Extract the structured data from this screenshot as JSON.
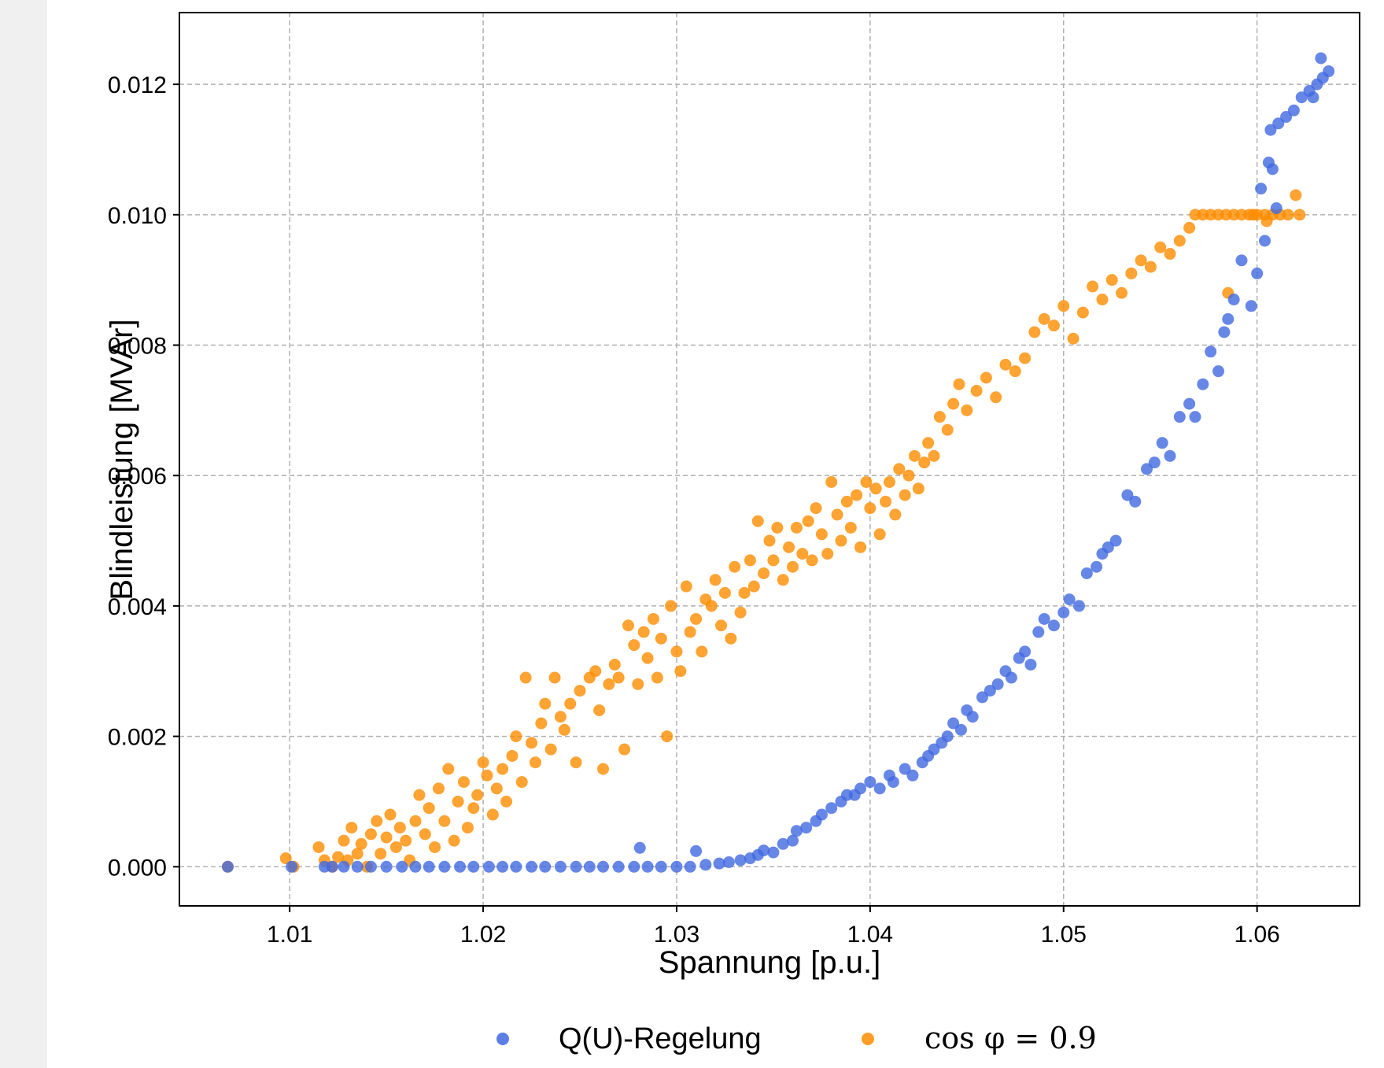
{
  "chart_data": {
    "type": "scatter",
    "title": "",
    "xlabel": "Spannung [p.u.]",
    "ylabel": "Blindleistung [MVAr]",
    "xlim": [
      1.0043,
      1.0653
    ],
    "ylim": [
      -0.0006,
      0.0131
    ],
    "xticks": [
      1.01,
      1.02,
      1.03,
      1.04,
      1.05,
      1.06
    ],
    "xtick_labels": [
      "1.01",
      "1.02",
      "1.03",
      "1.04",
      "1.05",
      "1.06"
    ],
    "yticks": [
      0,
      0.002,
      0.004,
      0.006,
      0.008,
      0.01,
      0.012
    ],
    "ytick_labels": [
      "0.000",
      "0.002",
      "0.004",
      "0.006",
      "0.008",
      "0.010",
      "0.012"
    ],
    "grid": true,
    "legend_position": "bottom-center",
    "series": [
      {
        "name": "Q(U)-Regelung",
        "color": "#4169e1",
        "points": [
          [
            1.0068,
            0.0
          ],
          [
            1.0101,
            0.0
          ],
          [
            1.0118,
            0.0
          ],
          [
            1.0122,
            0.0
          ],
          [
            1.0128,
            0.0
          ],
          [
            1.0135,
            0.0
          ],
          [
            1.0142,
            0.0
          ],
          [
            1.015,
            0.0
          ],
          [
            1.0158,
            0.0
          ],
          [
            1.0165,
            0.0
          ],
          [
            1.0172,
            0.0
          ],
          [
            1.018,
            0.0
          ],
          [
            1.0188,
            0.0
          ],
          [
            1.0195,
            0.0
          ],
          [
            1.0203,
            0.0
          ],
          [
            1.021,
            0.0
          ],
          [
            1.0217,
            0.0
          ],
          [
            1.0225,
            0.0
          ],
          [
            1.0232,
            0.0
          ],
          [
            1.024,
            0.0
          ],
          [
            1.0248,
            0.0
          ],
          [
            1.0255,
            0.0
          ],
          [
            1.0262,
            0.0
          ],
          [
            1.027,
            0.0
          ],
          [
            1.0278,
            0.0
          ],
          [
            1.0285,
            0.0
          ],
          [
            1.0292,
            0.0
          ],
          [
            1.03,
            0.0
          ],
          [
            1.0307,
            0.0
          ],
          [
            1.0315,
            3e-05
          ],
          [
            1.0322,
            5e-05
          ],
          [
            1.0281,
            0.00029
          ],
          [
            1.031,
            0.00024
          ],
          [
            1.0327,
            7e-05
          ],
          [
            1.0333,
            0.0001
          ],
          [
            1.0338,
            0.00013
          ],
          [
            1.0342,
            0.00018
          ],
          [
            1.0345,
            0.00025
          ],
          [
            1.035,
            0.00022
          ],
          [
            1.0355,
            0.00035
          ],
          [
            1.036,
            0.0004
          ],
          [
            1.0362,
            0.00055
          ],
          [
            1.0367,
            0.0006
          ],
          [
            1.0372,
            0.0007
          ],
          [
            1.0375,
            0.0008
          ],
          [
            1.038,
            0.0009
          ],
          [
            1.0385,
            0.001
          ],
          [
            1.0388,
            0.0011
          ],
          [
            1.0392,
            0.0011
          ],
          [
            1.0395,
            0.0012
          ],
          [
            1.04,
            0.0013
          ],
          [
            1.0405,
            0.0012
          ],
          [
            1.041,
            0.0014
          ],
          [
            1.0412,
            0.0013
          ],
          [
            1.0418,
            0.0015
          ],
          [
            1.0422,
            0.0014
          ],
          [
            1.0427,
            0.0016
          ],
          [
            1.043,
            0.0017
          ],
          [
            1.0433,
            0.0018
          ],
          [
            1.0437,
            0.0019
          ],
          [
            1.044,
            0.002
          ],
          [
            1.0443,
            0.0022
          ],
          [
            1.0447,
            0.0021
          ],
          [
            1.045,
            0.0024
          ],
          [
            1.0453,
            0.0023
          ],
          [
            1.0458,
            0.0026
          ],
          [
            1.0462,
            0.0027
          ],
          [
            1.0466,
            0.0028
          ],
          [
            1.047,
            0.003
          ],
          [
            1.0473,
            0.0029
          ],
          [
            1.0477,
            0.0032
          ],
          [
            1.048,
            0.0033
          ],
          [
            1.0483,
            0.0031
          ],
          [
            1.0487,
            0.0036
          ],
          [
            1.049,
            0.0038
          ],
          [
            1.0495,
            0.0037
          ],
          [
            1.05,
            0.0039
          ],
          [
            1.0503,
            0.0041
          ],
          [
            1.0508,
            0.004
          ],
          [
            1.0512,
            0.0045
          ],
          [
            1.0517,
            0.0046
          ],
          [
            1.052,
            0.0048
          ],
          [
            1.0523,
            0.0049
          ],
          [
            1.0527,
            0.005
          ],
          [
            1.0533,
            0.0057
          ],
          [
            1.0537,
            0.0056
          ],
          [
            1.0543,
            0.0061
          ],
          [
            1.0547,
            0.0062
          ],
          [
            1.0551,
            0.0065
          ],
          [
            1.0555,
            0.0063
          ],
          [
            1.056,
            0.0069
          ],
          [
            1.0565,
            0.0071
          ],
          [
            1.0568,
            0.0069
          ],
          [
            1.0572,
            0.0074
          ],
          [
            1.0576,
            0.0079
          ],
          [
            1.058,
            0.0076
          ],
          [
            1.0583,
            0.0082
          ],
          [
            1.0585,
            0.0084
          ],
          [
            1.0588,
            0.0087
          ],
          [
            1.0592,
            0.0093
          ],
          [
            1.0597,
            0.0086
          ],
          [
            1.06,
            0.0091
          ],
          [
            1.0602,
            0.0104
          ],
          [
            1.0604,
            0.0096
          ],
          [
            1.0606,
            0.0108
          ],
          [
            1.0608,
            0.0107
          ],
          [
            1.061,
            0.0101
          ],
          [
            1.0607,
            0.0113
          ],
          [
            1.0611,
            0.0114
          ],
          [
            1.0615,
            0.0115
          ],
          [
            1.0619,
            0.0116
          ],
          [
            1.0623,
            0.0118
          ],
          [
            1.0627,
            0.0119
          ],
          [
            1.0631,
            0.012
          ],
          [
            1.0634,
            0.0121
          ],
          [
            1.0637,
            0.0122
          ],
          [
            1.0633,
            0.0124
          ],
          [
            1.0629,
            0.0118
          ]
        ]
      },
      {
        "name": "cos φ = 0.9",
        "color": "#ff8c00",
        "points": [
          [
            1.0068,
            0.0
          ],
          [
            1.0098,
            0.00013
          ],
          [
            1.0102,
            0.0
          ],
          [
            1.0115,
            0.0003
          ],
          [
            1.0118,
            0.0001
          ],
          [
            1.0122,
            0.0
          ],
          [
            1.0125,
            0.00015
          ],
          [
            1.0128,
            0.0004
          ],
          [
            1.013,
            0.0001
          ],
          [
            1.0132,
            0.0006
          ],
          [
            1.0135,
            0.0002
          ],
          [
            1.0137,
            0.00035
          ],
          [
            1.014,
            0.0
          ],
          [
            1.0142,
            0.0005
          ],
          [
            1.0145,
            0.0007
          ],
          [
            1.0147,
            0.0002
          ],
          [
            1.015,
            0.00045
          ],
          [
            1.0152,
            0.0008
          ],
          [
            1.0155,
            0.0003
          ],
          [
            1.0157,
            0.0006
          ],
          [
            1.016,
            0.0004
          ],
          [
            1.0162,
            0.0001
          ],
          [
            1.0165,
            0.0007
          ],
          [
            1.0167,
            0.0011
          ],
          [
            1.017,
            0.0005
          ],
          [
            1.0172,
            0.0009
          ],
          [
            1.0175,
            0.0003
          ],
          [
            1.0177,
            0.0012
          ],
          [
            1.018,
            0.0007
          ],
          [
            1.0182,
            0.0015
          ],
          [
            1.0185,
            0.0004
          ],
          [
            1.0187,
            0.001
          ],
          [
            1.019,
            0.0013
          ],
          [
            1.0192,
            0.0006
          ],
          [
            1.0195,
            0.0009
          ],
          [
            1.0197,
            0.0011
          ],
          [
            1.02,
            0.0016
          ],
          [
            1.0202,
            0.0014
          ],
          [
            1.0205,
            0.0008
          ],
          [
            1.0207,
            0.0012
          ],
          [
            1.021,
            0.0015
          ],
          [
            1.0212,
            0.001
          ],
          [
            1.0215,
            0.0017
          ],
          [
            1.0217,
            0.002
          ],
          [
            1.022,
            0.0013
          ],
          [
            1.0222,
            0.0029
          ],
          [
            1.0225,
            0.0019
          ],
          [
            1.0227,
            0.0016
          ],
          [
            1.023,
            0.0022
          ],
          [
            1.0232,
            0.0025
          ],
          [
            1.0235,
            0.0018
          ],
          [
            1.0237,
            0.0029
          ],
          [
            1.024,
            0.0023
          ],
          [
            1.0242,
            0.0021
          ],
          [
            1.0245,
            0.0025
          ],
          [
            1.0248,
            0.0016
          ],
          [
            1.025,
            0.0027
          ],
          [
            1.0255,
            0.0029
          ],
          [
            1.0258,
            0.003
          ],
          [
            1.026,
            0.0024
          ],
          [
            1.0262,
            0.0015
          ],
          [
            1.0265,
            0.0028
          ],
          [
            1.0268,
            0.0031
          ],
          [
            1.027,
            0.0029
          ],
          [
            1.0273,
            0.0018
          ],
          [
            1.0275,
            0.0037
          ],
          [
            1.0278,
            0.0034
          ],
          [
            1.028,
            0.0028
          ],
          [
            1.0283,
            0.0036
          ],
          [
            1.0285,
            0.0032
          ],
          [
            1.0288,
            0.0038
          ],
          [
            1.029,
            0.0029
          ],
          [
            1.0292,
            0.0035
          ],
          [
            1.0295,
            0.002
          ],
          [
            1.0297,
            0.004
          ],
          [
            1.03,
            0.0033
          ],
          [
            1.0302,
            0.003
          ],
          [
            1.0305,
            0.0043
          ],
          [
            1.0307,
            0.0036
          ],
          [
            1.031,
            0.0038
          ],
          [
            1.0313,
            0.0033
          ],
          [
            1.0315,
            0.0041
          ],
          [
            1.0318,
            0.004
          ],
          [
            1.032,
            0.0044
          ],
          [
            1.0323,
            0.0037
          ],
          [
            1.0325,
            0.0042
          ],
          [
            1.0328,
            0.0035
          ],
          [
            1.033,
            0.0046
          ],
          [
            1.0333,
            0.0039
          ],
          [
            1.0335,
            0.0042
          ],
          [
            1.0338,
            0.0047
          ],
          [
            1.034,
            0.0043
          ],
          [
            1.0342,
            0.0053
          ],
          [
            1.0345,
            0.0045
          ],
          [
            1.0348,
            0.005
          ],
          [
            1.035,
            0.0047
          ],
          [
            1.0352,
            0.0052
          ],
          [
            1.0355,
            0.0044
          ],
          [
            1.0358,
            0.0049
          ],
          [
            1.036,
            0.0046
          ],
          [
            1.0362,
            0.0052
          ],
          [
            1.0365,
            0.0048
          ],
          [
            1.0368,
            0.0053
          ],
          [
            1.037,
            0.0047
          ],
          [
            1.0372,
            0.0055
          ],
          [
            1.0375,
            0.0051
          ],
          [
            1.0378,
            0.0048
          ],
          [
            1.038,
            0.0059
          ],
          [
            1.0383,
            0.0054
          ],
          [
            1.0385,
            0.005
          ],
          [
            1.0388,
            0.0056
          ],
          [
            1.039,
            0.0052
          ],
          [
            1.0393,
            0.0057
          ],
          [
            1.0395,
            0.0049
          ],
          [
            1.0398,
            0.0059
          ],
          [
            1.04,
            0.0055
          ],
          [
            1.0403,
            0.0058
          ],
          [
            1.0405,
            0.0051
          ],
          [
            1.0408,
            0.0056
          ],
          [
            1.041,
            0.0059
          ],
          [
            1.0413,
            0.0054
          ],
          [
            1.0415,
            0.0061
          ],
          [
            1.0418,
            0.0057
          ],
          [
            1.042,
            0.006
          ],
          [
            1.0423,
            0.0063
          ],
          [
            1.0425,
            0.0058
          ],
          [
            1.0428,
            0.0062
          ],
          [
            1.043,
            0.0065
          ],
          [
            1.0433,
            0.0063
          ],
          [
            1.0436,
            0.0069
          ],
          [
            1.044,
            0.0067
          ],
          [
            1.0443,
            0.0071
          ],
          [
            1.0446,
            0.0074
          ],
          [
            1.045,
            0.007
          ],
          [
            1.0455,
            0.0073
          ],
          [
            1.046,
            0.0075
          ],
          [
            1.0465,
            0.0072
          ],
          [
            1.047,
            0.0077
          ],
          [
            1.0475,
            0.0076
          ],
          [
            1.048,
            0.0078
          ],
          [
            1.0485,
            0.0082
          ],
          [
            1.049,
            0.0084
          ],
          [
            1.0495,
            0.0083
          ],
          [
            1.05,
            0.0086
          ],
          [
            1.0505,
            0.0081
          ],
          [
            1.051,
            0.0085
          ],
          [
            1.0515,
            0.0089
          ],
          [
            1.052,
            0.0087
          ],
          [
            1.0525,
            0.009
          ],
          [
            1.053,
            0.0088
          ],
          [
            1.0535,
            0.0091
          ],
          [
            1.054,
            0.0093
          ],
          [
            1.0545,
            0.0092
          ],
          [
            1.055,
            0.0095
          ],
          [
            1.0555,
            0.0094
          ],
          [
            1.056,
            0.0096
          ],
          [
            1.0565,
            0.0098
          ],
          [
            1.0568,
            0.01
          ],
          [
            1.0572,
            0.01
          ],
          [
            1.0576,
            0.01
          ],
          [
            1.058,
            0.01
          ],
          [
            1.0584,
            0.01
          ],
          [
            1.0588,
            0.01
          ],
          [
            1.0592,
            0.01
          ],
          [
            1.0596,
            0.01
          ],
          [
            1.06,
            0.01
          ],
          [
            1.0604,
            0.01
          ],
          [
            1.0608,
            0.01
          ],
          [
            1.0612,
            0.01
          ],
          [
            1.0616,
            0.01
          ],
          [
            1.062,
            0.0103
          ],
          [
            1.0622,
            0.01
          ],
          [
            1.0605,
            0.0099
          ],
          [
            1.0598,
            0.01
          ],
          [
            1.0585,
            0.0088
          ]
        ]
      }
    ]
  },
  "legend": {
    "items": [
      {
        "label": "Q(U)-Regelung",
        "color": "#4169e1"
      },
      {
        "label_math": "cos φ = 0.9",
        "color": "#ff8c00"
      }
    ]
  }
}
